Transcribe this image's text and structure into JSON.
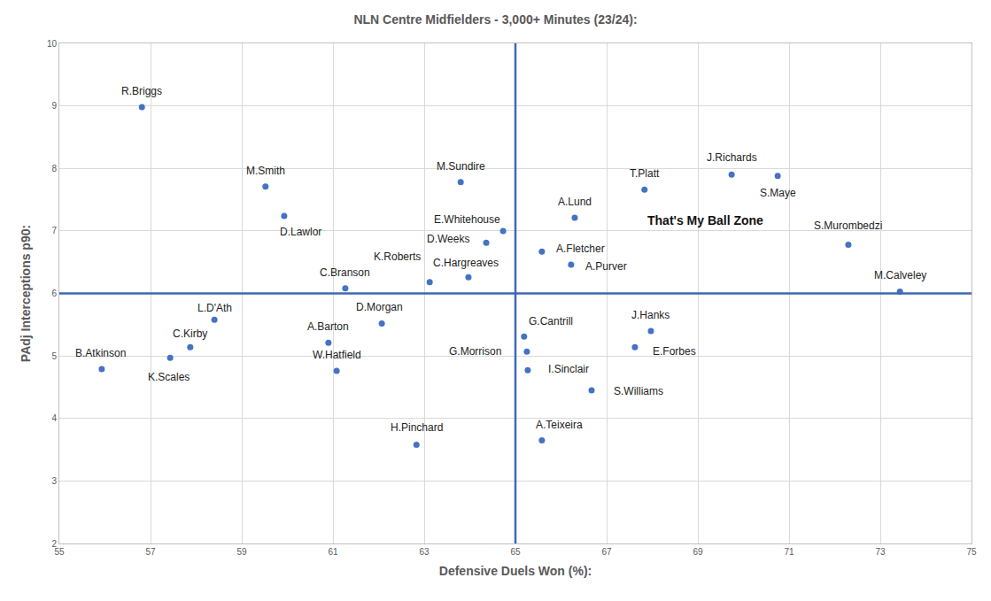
{
  "chart_data": {
    "type": "scatter",
    "title": "NLN Centre Midfielders - 3,000+ Minutes (23/24):",
    "x_label": "Defensive Duels Won (%):",
    "y_label": "PAdj Interceptions p90:",
    "point_labels": [
      "R.Briggs",
      "M.Smith",
      "D.Lawlor",
      "M.Sundire",
      "E.Whitehouse",
      "D.Weeks",
      "A.Lund",
      "T.Platt",
      "J.Richards",
      "S.Maye",
      "S.Murombedzi",
      "M.Calveley",
      "A.Fletcher",
      "A.Purver",
      "K.Roberts",
      "C.Hargreaves",
      "C.Branson",
      "L.D'Ath",
      "D.Morgan",
      "A.Barton",
      "C.Kirby",
      "K.Scales",
      "B.Atkinson",
      "W.Hatfield",
      "H.Pinchard",
      "G.Cantrill",
      "G.Morrison",
      "I.Sinclair",
      "J.Hanks",
      "E.Forbes",
      "S.Williams",
      "A.Teixeira"
    ],
    "x": [
      56.81,
      59.52,
      59.93,
      63.8,
      64.73,
      64.36,
      66.3,
      67.83,
      69.74,
      70.75,
      72.3,
      73.43,
      65.58,
      66.22,
      63.12,
      63.97,
      61.27,
      58.4,
      62.07,
      60.9,
      57.87,
      57.43,
      55.93,
      61.08,
      62.83,
      65.19,
      65.25,
      65.27,
      67.97,
      67.62,
      66.67,
      65.58
    ],
    "values": [
      8.98,
      7.71,
      7.24,
      7.78,
      7.0,
      6.81,
      7.21,
      7.66,
      7.9,
      7.88,
      6.78,
      6.03,
      6.67,
      6.46,
      6.18,
      6.26,
      6.08,
      5.58,
      5.52,
      5.21,
      5.14,
      4.97,
      4.79,
      4.76,
      3.58,
      5.31,
      5.07,
      4.77,
      5.4,
      5.14,
      4.45,
      3.65
    ],
    "color": "#4472c4",
    "marker": "circle",
    "xlim": [
      55,
      75
    ],
    "xticks": [
      55,
      57,
      59,
      61,
      63,
      65,
      67,
      69,
      71,
      73,
      75
    ],
    "ylim": [
      2,
      10
    ],
    "yticks": [
      2,
      3,
      4,
      5,
      6,
      7,
      8,
      9,
      10
    ],
    "grid": true,
    "vlines": [
      65
    ],
    "hlines": [
      6
    ],
    "annotations": [
      {
        "text": "That's My Ball Zone",
        "x": 69.17,
        "y": 7.17
      }
    ]
  }
}
